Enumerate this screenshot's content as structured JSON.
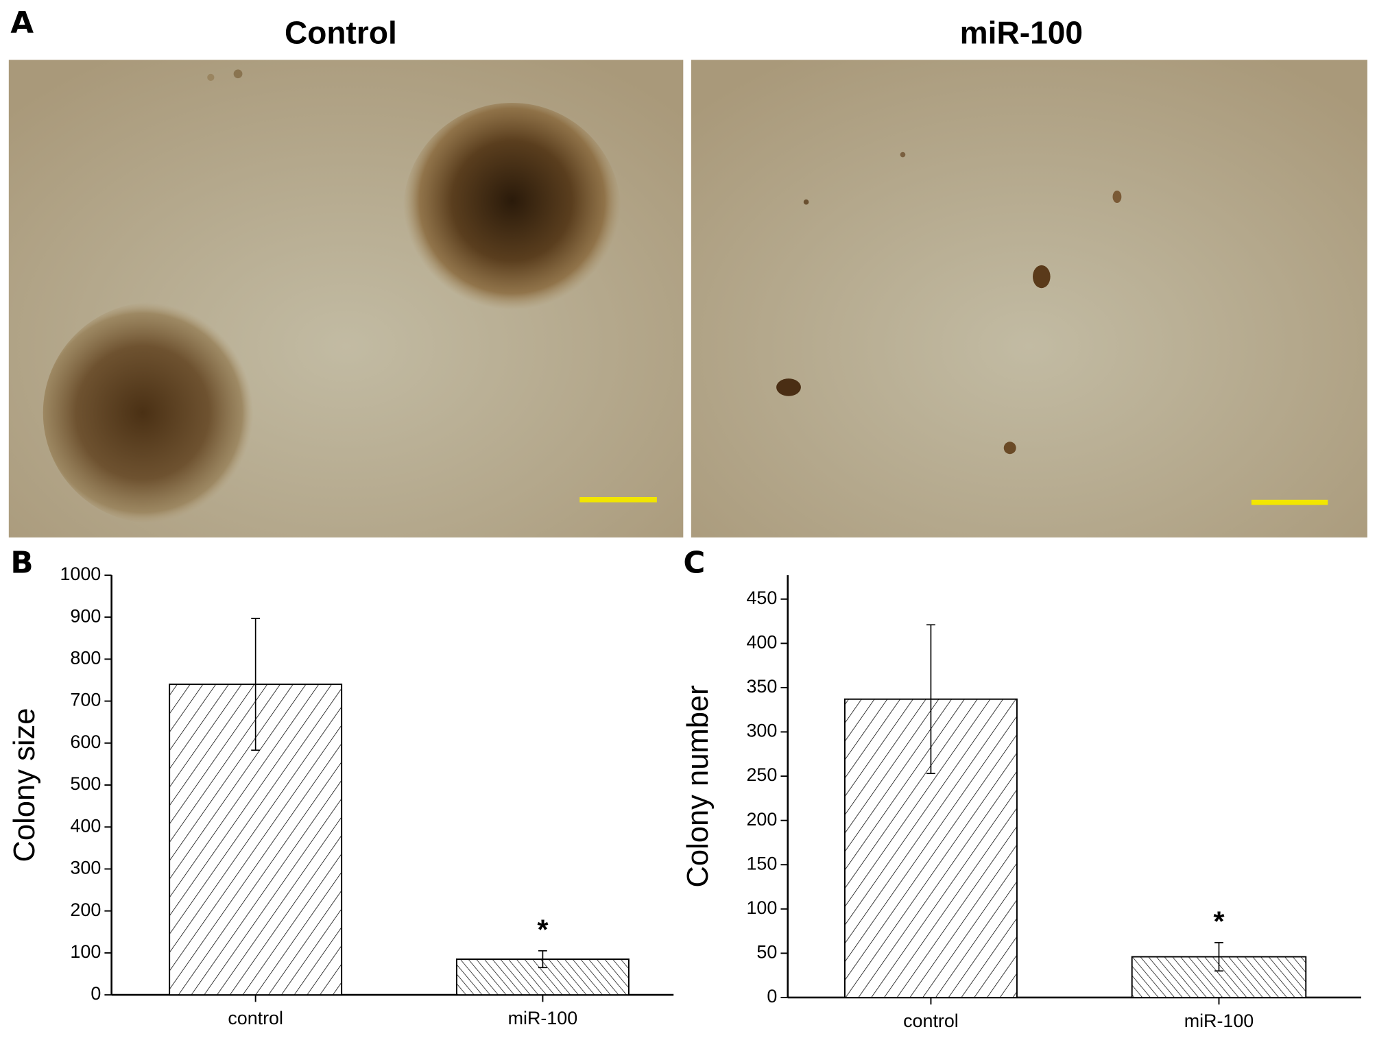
{
  "panel_labels": [
    "A",
    "B",
    "C"
  ],
  "image_titles": [
    "Control",
    "miR-100"
  ],
  "chart_data": [
    {
      "type": "bar",
      "y_label": "Colony size",
      "categories": [
        "control",
        "miR-100"
      ],
      "values": [
        740,
        85
      ],
      "errors": [
        157,
        20
      ],
      "significance": [
        null,
        "*"
      ],
      "ylim": [
        0,
        1000
      ],
      "yticks": [
        0,
        100,
        200,
        300,
        400,
        500,
        600,
        700,
        800,
        900,
        1000
      ]
    },
    {
      "type": "bar",
      "y_label": "Colony number",
      "categories": [
        "control",
        "miR-100"
      ],
      "values": [
        337,
        46
      ],
      "errors": [
        84,
        16
      ],
      "significance": [
        null,
        "*"
      ],
      "ylim": [
        0,
        477
      ],
      "yticks": [
        0,
        50,
        100,
        150,
        200,
        250,
        300,
        350,
        400,
        450
      ]
    }
  ]
}
